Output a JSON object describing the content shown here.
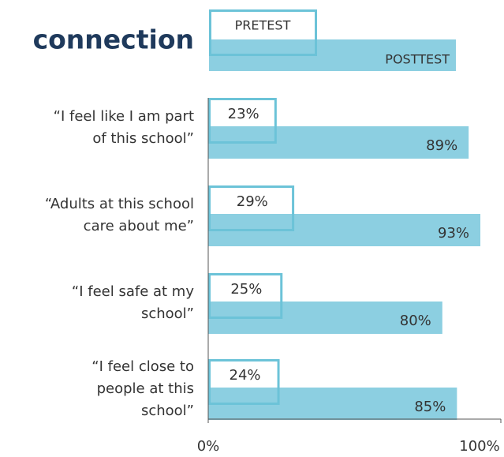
{
  "chart_data": {
    "type": "bar",
    "orientation": "horizontal",
    "overlap": true,
    "title": "connection",
    "categories": [
      [
        "“I feel like I am part",
        "of this school”"
      ],
      [
        "“Adults at this school",
        "care about me”"
      ],
      [
        "“I feel safe at my",
        "school”"
      ],
      [
        "“I feel close to",
        "people at this",
        "school”"
      ]
    ],
    "series": [
      {
        "name": "PRETEST",
        "color": "#6cc3d8",
        "values": [
          23,
          29,
          25,
          24
        ],
        "value_labels": [
          "23%",
          "29%",
          "25%",
          "24%"
        ]
      },
      {
        "name": "POSTTEST",
        "color": "#8ccfe1",
        "values": [
          89,
          93,
          80,
          85
        ],
        "value_labels": [
          "89%",
          "93%",
          "80%",
          "85%"
        ]
      }
    ],
    "xlim": [
      0,
      100
    ],
    "xticks": [
      {
        "value": 0,
        "label": "0%"
      },
      {
        "value": 100,
        "label": "100%"
      }
    ]
  }
}
